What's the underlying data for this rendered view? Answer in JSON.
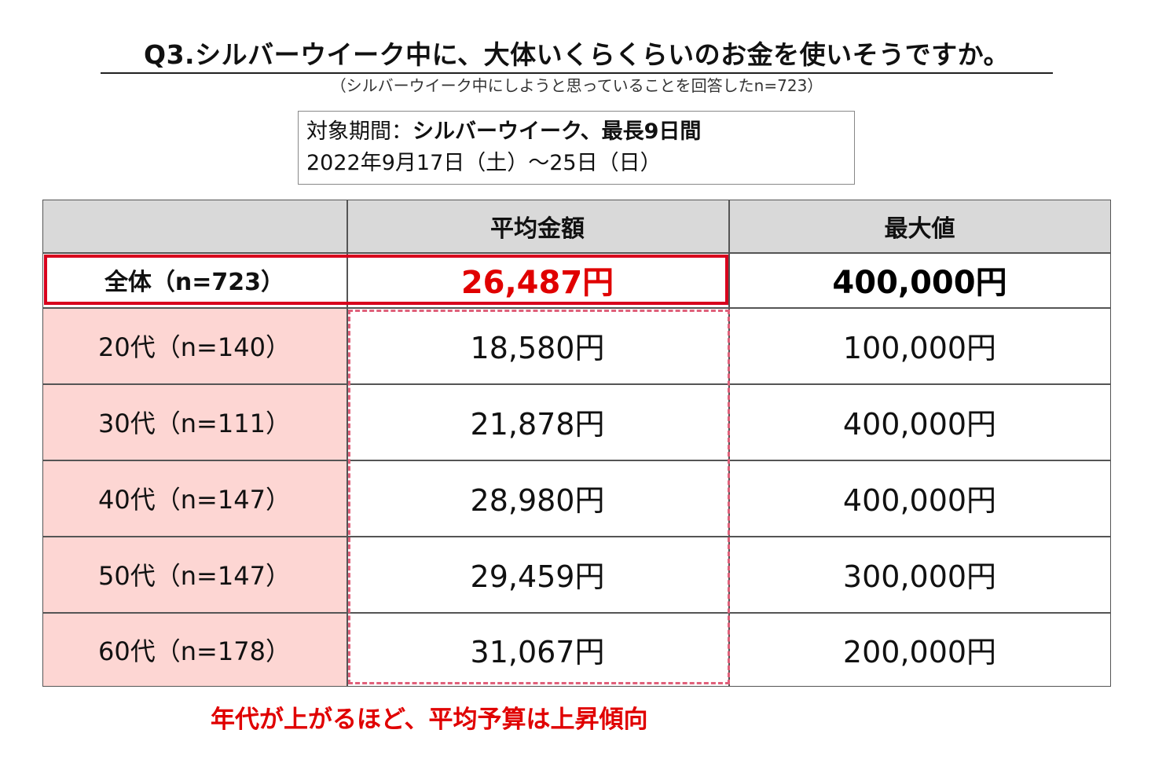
{
  "title": "Q3.シルバーウイーク中に、大体いくらくらいのお金を使いそうですか。",
  "subtitle": "（シルバーウイーク中にしようと思っていることを回答したn=723）",
  "period": {
    "label": "対象期間：",
    "name": "シルバーウイーク、最長9日間",
    "dates": "2022年9月17日（土）～25日（日）"
  },
  "chart_data": {
    "type": "table",
    "columns": [
      "",
      "平均金額",
      "最大値"
    ],
    "rows": [
      {
        "label": "全体（n=723）",
        "avg": "26,487円",
        "max": "400,000円",
        "avg_value": 26487,
        "max_value": 400000
      },
      {
        "label": "20代（n=140）",
        "avg": "18,580円",
        "max": "100,000円",
        "avg_value": 18580,
        "max_value": 100000
      },
      {
        "label": "30代（n=111）",
        "avg": "21,878円",
        "max": "400,000円",
        "avg_value": 21878,
        "max_value": 400000
      },
      {
        "label": "40代（n=147）",
        "avg": "28,980円",
        "max": "400,000円",
        "avg_value": 28980,
        "max_value": 400000
      },
      {
        "label": "50代（n=147）",
        "avg": "29,459円",
        "max": "300,000円",
        "avg_value": 29459,
        "max_value": 300000
      },
      {
        "label": "60代（n=178）",
        "avg": "31,067円",
        "max": "200,000円",
        "avg_value": 31067,
        "max_value": 200000
      }
    ]
  },
  "note": "年代が上がるほど、平均予算は上昇傾向",
  "colors": {
    "highlight_red": "#e00000",
    "row_label_pink": "#fdd6d3",
    "header_gray": "#d9d9d9"
  }
}
